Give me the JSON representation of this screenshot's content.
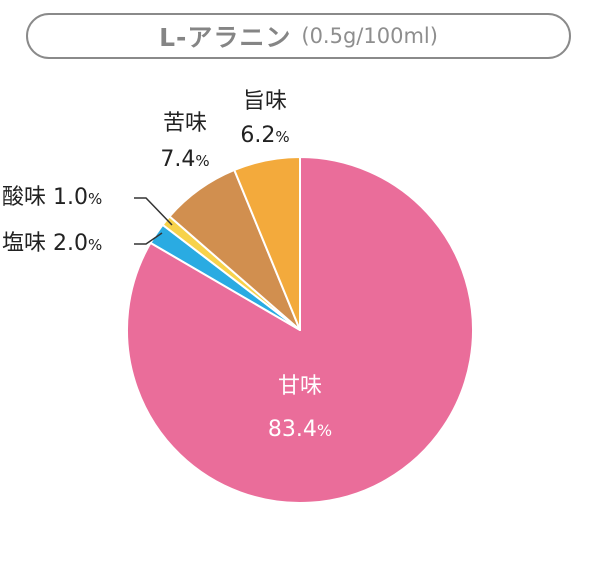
{
  "header": {
    "title": "L-アラニン",
    "subtitle": "(0.5g/100ml)"
  },
  "chart_data": {
    "type": "pie",
    "start": "top",
    "direction": "clockwise",
    "slices": [
      {
        "label": "甘味",
        "value": 83.4,
        "display": "83.4",
        "color": "#ea6d9a"
      },
      {
        "label": "塩味",
        "value": 2.0,
        "display": "2.0",
        "color": "#2aabe2"
      },
      {
        "label": "酸味",
        "value": 1.0,
        "display": "1.0",
        "color": "#f7d24b"
      },
      {
        "label": "苦味",
        "value": 7.4,
        "display": "7.4",
        "color": "#d18f4f"
      },
      {
        "label": "旨味",
        "value": 6.2,
        "display": "6.2",
        "color": "#f3aa3c"
      }
    ],
    "unit": "%"
  }
}
